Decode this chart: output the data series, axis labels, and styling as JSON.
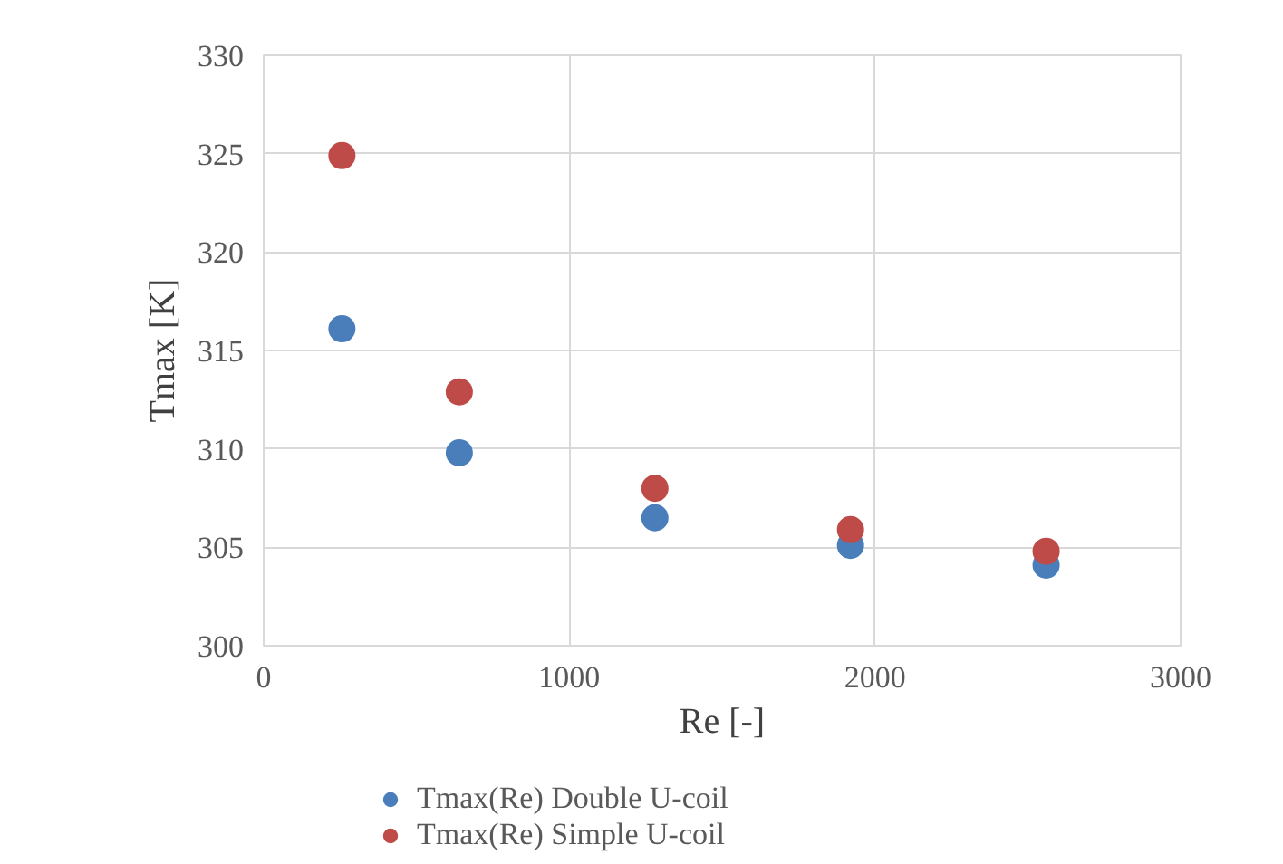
{
  "chart_data": {
    "type": "scatter",
    "xlabel": "Re [-]",
    "ylabel": "Tmax [K]",
    "x": [
      256,
      640,
      1280,
      1920,
      2560
    ],
    "series": [
      {
        "name": "Tmax(Re) Double U-coil",
        "color": "#4a7ebb",
        "values": [
          316.1,
          309.8,
          306.5,
          305.1,
          304.1
        ]
      },
      {
        "name": "Tmax(Re) Simple U-coil",
        "color": "#be4b48",
        "values": [
          324.9,
          312.9,
          308.0,
          305.9,
          304.8
        ]
      }
    ],
    "xlim": [
      0,
      3000
    ],
    "xticks": [
      0,
      1000,
      2000,
      3000
    ],
    "ylim": [
      300,
      330
    ],
    "yticks": [
      300,
      305,
      310,
      315,
      320,
      325,
      330
    ],
    "grid": true,
    "legend": "bottom",
    "marker": "circle"
  }
}
